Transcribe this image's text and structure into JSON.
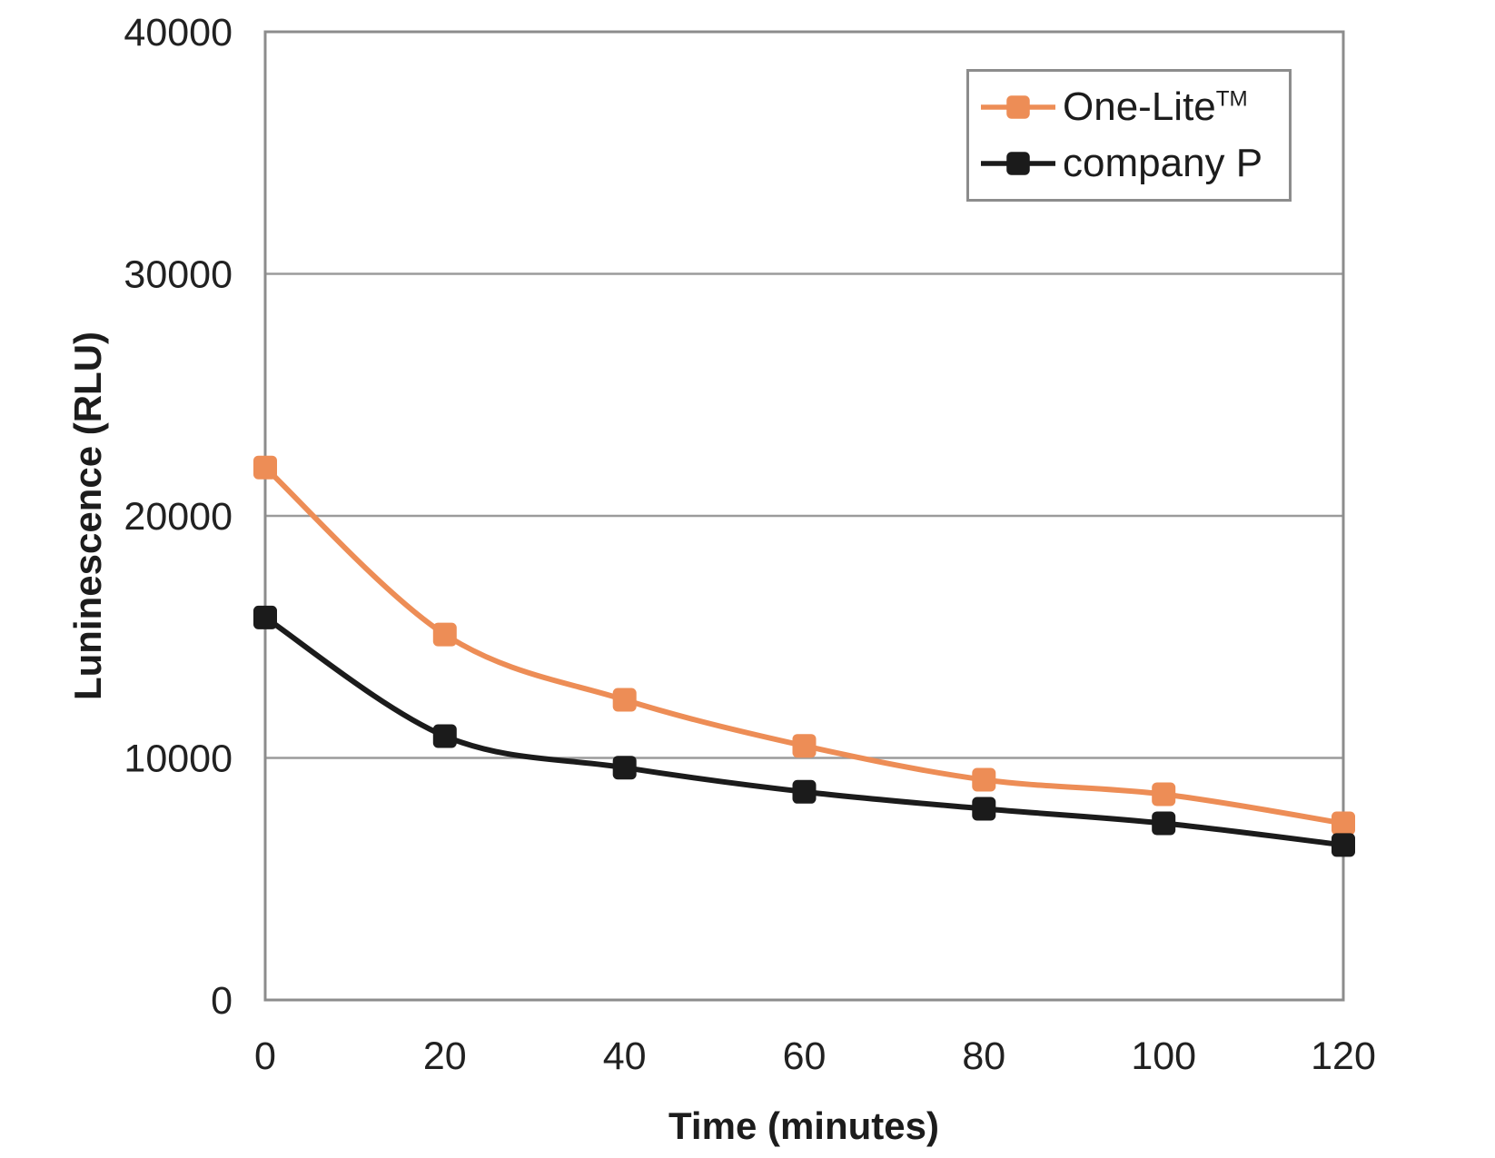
{
  "colors": {
    "background": "#FFFFFF",
    "grid": "#9B9B9B",
    "plot_border": "#8C8C8C",
    "text": "#212121",
    "one_lite_orange": "#ED8D56",
    "company_p_black": "#1B1B1B"
  },
  "legend": {
    "position": "top-right",
    "items": [
      {
        "label": "One-Lite",
        "sup": "TM"
      },
      {
        "label": "company P",
        "sup": ""
      }
    ]
  },
  "chart_data": {
    "type": "line",
    "title": "",
    "xlabel": "Time (minutes)",
    "ylabel": "Luninescence (RLU)",
    "x": [
      0,
      20,
      40,
      60,
      80,
      100,
      120
    ],
    "series": [
      {
        "name": "One-Lite™",
        "label": "One-Lite",
        "sup": "TM",
        "color": "#ED8D56",
        "marker": "square",
        "values": [
          22000,
          15100,
          12400,
          10500,
          9100,
          8500,
          7300
        ]
      },
      {
        "name": "company P",
        "label": "company P",
        "sup": "",
        "color": "#1B1B1B",
        "marker": "square",
        "values": [
          15800,
          10900,
          9600,
          8600,
          7900,
          7300,
          6400
        ]
      }
    ],
    "xlim": [
      0,
      120
    ],
    "ylim": [
      0,
      40000
    ],
    "xticks": [
      0,
      20,
      40,
      60,
      80,
      100,
      120
    ],
    "yticks": [
      0,
      10000,
      20000,
      30000,
      40000
    ],
    "grid": "horizontal",
    "legend_position": "top-right",
    "line_style": "smooth"
  }
}
